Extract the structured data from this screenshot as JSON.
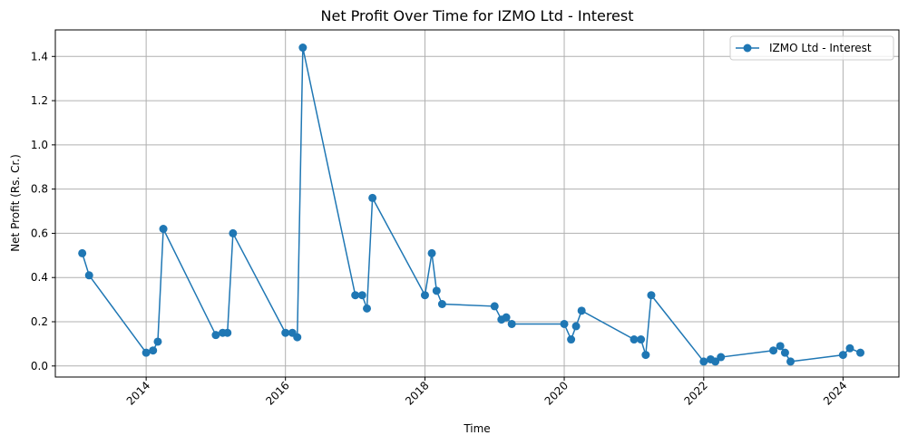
{
  "chart_data": {
    "type": "line",
    "title": "Net Profit Over Time for IZMO Ltd - Interest",
    "xlabel": "Time",
    "ylabel": "Net Profit (Rs. Cr.)",
    "x_ticks": [
      "2014",
      "2016",
      "2018",
      "2020",
      "2022",
      "2024"
    ],
    "y_ticks": [
      "0.0",
      "0.2",
      "0.4",
      "0.6",
      "0.8",
      "1.0",
      "1.2",
      "1.4"
    ],
    "xlim": [
      "2012-09-12",
      "2024-10-20"
    ],
    "ylim": [
      -0.05,
      1.52
    ],
    "grid": true,
    "legend_position": "top-right",
    "color": "#1f77b4",
    "series": [
      {
        "name": "IZMO Ltd - Interest",
        "x": [
          "2013-01-31",
          "2013-03-08",
          "2014-01-01",
          "2014-02-06",
          "2014-03-03",
          "2014-04-01",
          "2015-01-01",
          "2015-02-06",
          "2015-03-03",
          "2015-04-01",
          "2016-01-01",
          "2016-02-06",
          "2016-03-03",
          "2016-04-01",
          "2017-01-01",
          "2017-02-06",
          "2017-03-03",
          "2017-04-01",
          "2018-01-01",
          "2018-02-06",
          "2018-03-03",
          "2018-04-01",
          "2019-01-01",
          "2019-02-06",
          "2019-03-03",
          "2019-04-01",
          "2020-01-01",
          "2020-02-06",
          "2020-03-03",
          "2020-04-01",
          "2021-01-01",
          "2021-02-06",
          "2021-03-03",
          "2021-04-01",
          "2022-01-01",
          "2022-02-06",
          "2022-03-03",
          "2022-04-01",
          "2023-01-01",
          "2023-02-06",
          "2023-03-03",
          "2023-04-01",
          "2024-01-01",
          "2024-02-06",
          "2024-04-01"
        ],
        "y": [
          0.51,
          0.41,
          0.06,
          0.07,
          0.11,
          0.62,
          0.14,
          0.15,
          0.15,
          0.6,
          0.15,
          0.15,
          0.13,
          1.44,
          0.32,
          0.32,
          0.26,
          0.76,
          0.32,
          0.51,
          0.34,
          0.28,
          0.27,
          0.21,
          0.22,
          0.19,
          0.19,
          0.12,
          0.18,
          0.25,
          0.12,
          0.12,
          0.05,
          0.32,
          0.02,
          0.03,
          0.02,
          0.04,
          0.07,
          0.09,
          0.06,
          0.02,
          0.05,
          0.08,
          0.06
        ]
      }
    ]
  }
}
